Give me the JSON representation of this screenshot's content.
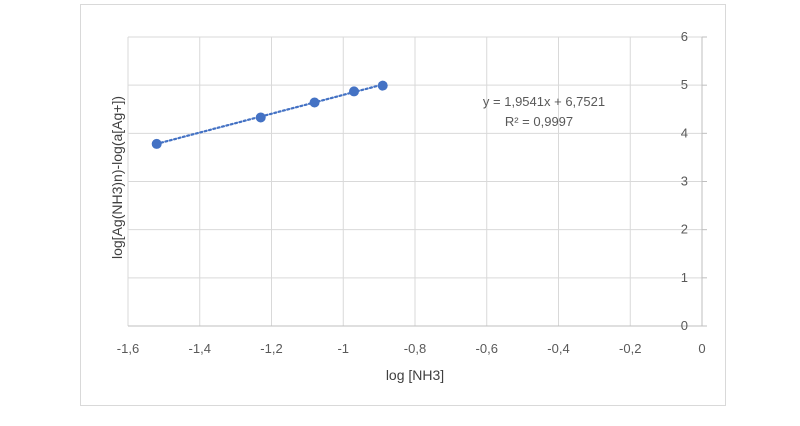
{
  "chart_data": {
    "type": "scatter",
    "title": "",
    "xlabel": "log [NH3]",
    "ylabel": "log[Ag(NH3)n)-log(a[Ag+])",
    "xlim": [
      -1.6,
      0
    ],
    "ylim": [
      0,
      6
    ],
    "x_ticks": [
      "-1,6",
      "-1,4",
      "-1,2",
      "-1",
      "-0,8",
      "-0,6",
      "-0,4",
      "-0,2",
      "0"
    ],
    "x_tick_values": [
      -1.6,
      -1.4,
      -1.2,
      -1.0,
      -0.8,
      -0.6,
      -0.4,
      -0.2,
      0
    ],
    "y_ticks": [
      "0",
      "1",
      "2",
      "3",
      "4",
      "5",
      "6"
    ],
    "y_tick_values": [
      0,
      1,
      2,
      3,
      4,
      5,
      6
    ],
    "grid": true,
    "y_axis_position": "right",
    "series": [
      {
        "color": "#4472c4",
        "points": [
          {
            "x": -1.52,
            "y": 3.78
          },
          {
            "x": -1.23,
            "y": 4.33
          },
          {
            "x": -1.08,
            "y": 4.64
          },
          {
            "x": -0.97,
            "y": 4.87
          },
          {
            "x": -0.89,
            "y": 4.99
          }
        ]
      }
    ],
    "trendline": {
      "type": "linear",
      "slope": 1.9541,
      "intercept": 6.7521,
      "x_range": [
        -1.52,
        -0.89
      ],
      "style": "dotted",
      "color": "#4472c4",
      "equation_label": "y = 1,9541x + 6,7521",
      "r2_label": "R² = 0,9997"
    }
  }
}
